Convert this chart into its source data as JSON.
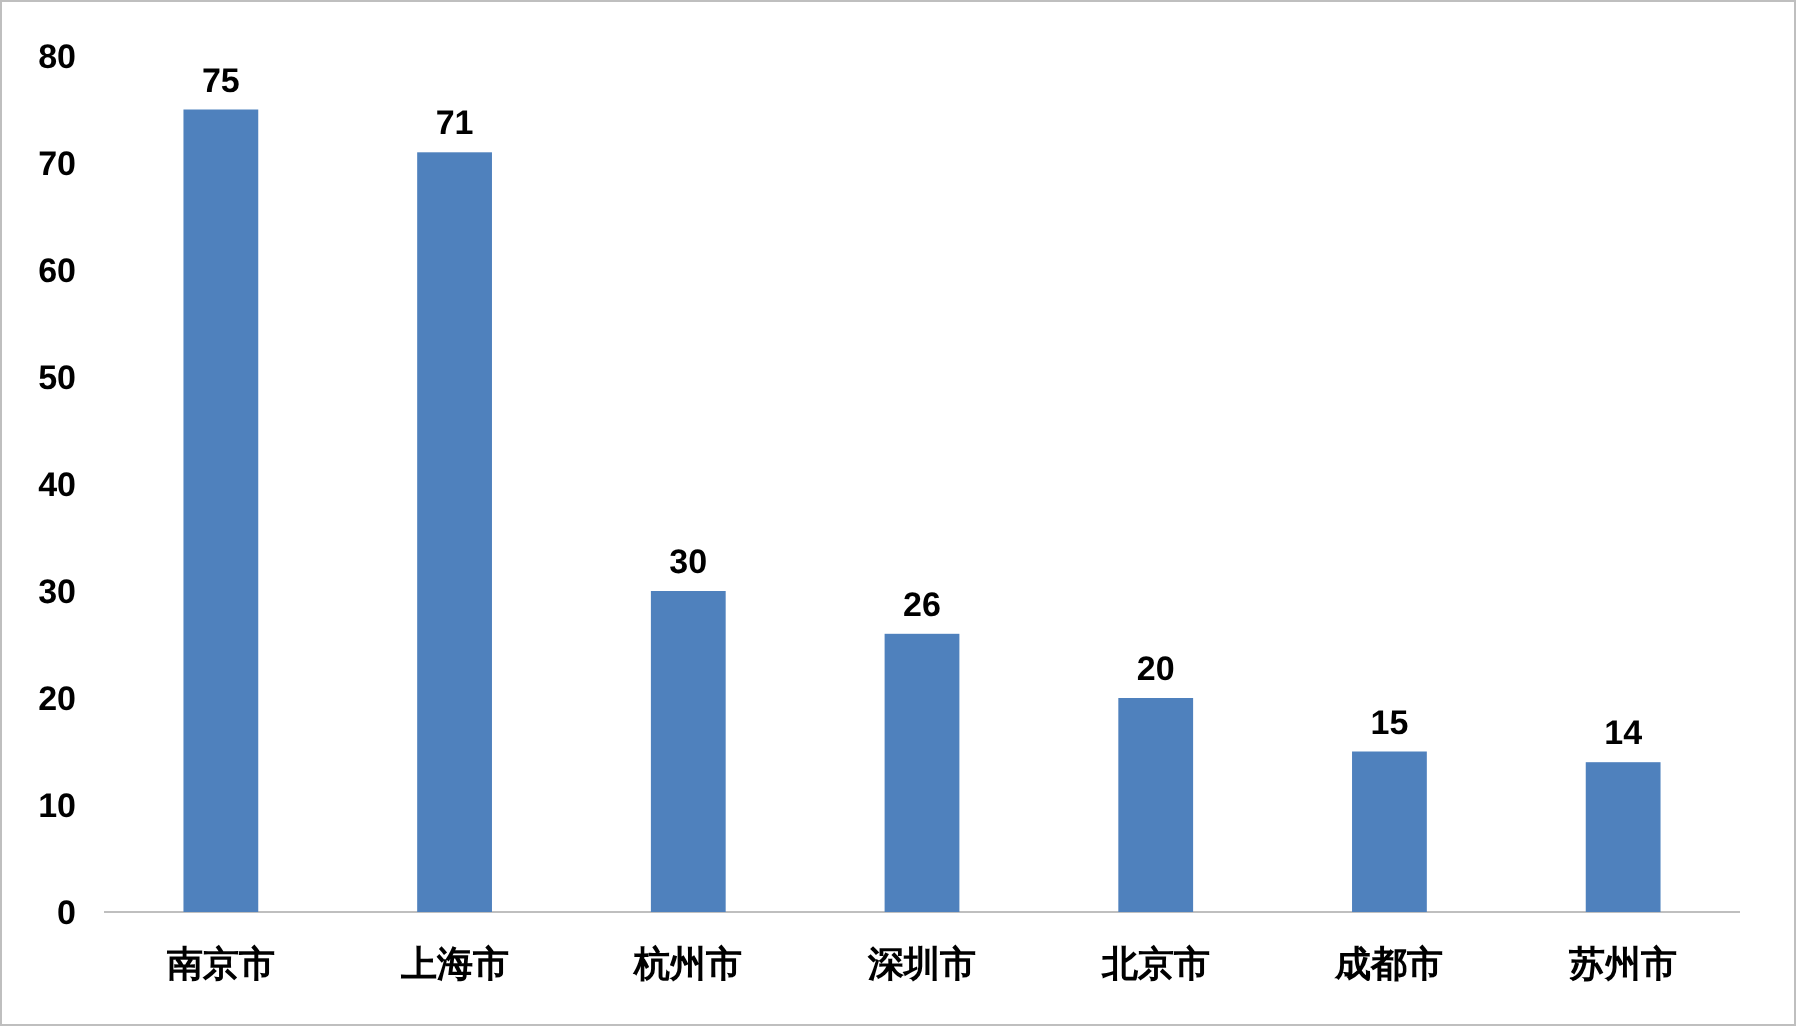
{
  "chart_data": {
    "type": "bar",
    "categories": [
      "南京市",
      "上海市",
      "杭州市",
      "深圳市",
      "北京市",
      "成都市",
      "苏州市"
    ],
    "values": [
      75,
      71,
      30,
      26,
      20,
      15,
      14
    ],
    "color": "#4f81bd",
    "ylim": [
      0,
      80
    ],
    "yticks": [
      0,
      10,
      20,
      30,
      40,
      50,
      60,
      70,
      80
    ],
    "data_labels": true
  }
}
